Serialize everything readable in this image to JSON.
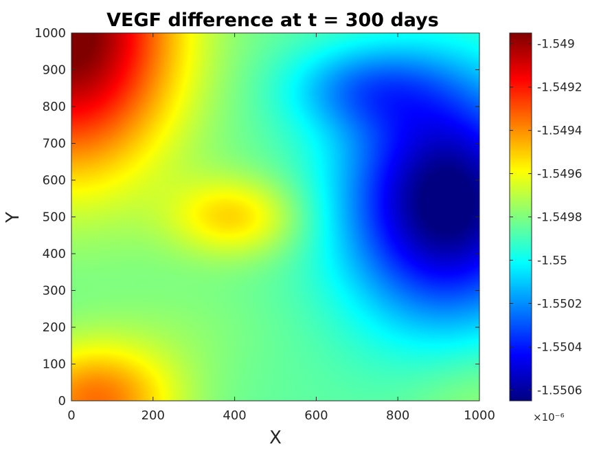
{
  "chart_data": {
    "type": "heatmap",
    "title": "VEGF difference at t = 300 days",
    "xlabel": "X",
    "ylabel": "Y",
    "xlim": [
      0,
      1000
    ],
    "ylim": [
      0,
      1000
    ],
    "x_ticks": [
      "0",
      "200",
      "400",
      "600",
      "800",
      "1000"
    ],
    "x_tick_values": [
      0,
      200,
      400,
      600,
      800,
      1000
    ],
    "y_ticks": [
      "0",
      "100",
      "200",
      "300",
      "400",
      "500",
      "600",
      "700",
      "800",
      "900",
      "1000"
    ],
    "y_tick_values": [
      0,
      100,
      200,
      300,
      400,
      500,
      600,
      700,
      800,
      900,
      1000
    ],
    "colormap": "jet",
    "colorbar": {
      "range": [
        -1.55065,
        -1.54895
      ],
      "scale_label": "×10⁻⁶",
      "tick_labels": [
        "-1.549",
        "-1.5492",
        "-1.5494",
        "-1.5496",
        "-1.5498",
        "-1.55",
        "-1.5502",
        "-1.5504",
        "-1.5506"
      ],
      "tick_values": [
        -1.549,
        -1.5492,
        -1.5494,
        -1.5496,
        -1.5498,
        -1.55,
        -1.5502,
        -1.5504,
        -1.5506
      ]
    },
    "field_approx": {
      "base": -1.54985,
      "features": [
        {
          "x": 0,
          "y": 1000,
          "amplitude": 0.00094,
          "sx": 260,
          "sy": 380
        },
        {
          "x": 400,
          "y": 500,
          "amplitude": 0.00032,
          "sx": 160,
          "sy": 110
        },
        {
          "x": 60,
          "y": 0,
          "amplitude": 0.0005,
          "sx": 200,
          "sy": 160
        },
        {
          "x": 920,
          "y": 540,
          "amplitude": -0.00085,
          "sx": 250,
          "sy": 320
        },
        {
          "x": 720,
          "y": 850,
          "amplitude": -0.0003,
          "sx": 200,
          "sy": 120
        },
        {
          "x": 1000,
          "y": 0,
          "amplitude": 0.0001,
          "sx": 180,
          "sy": 160
        },
        {
          "x": 300,
          "y": 200,
          "amplitude": 5e-05,
          "sx": 200,
          "sy": 150
        }
      ]
    }
  },
  "colors": {
    "title": "#000000",
    "text": "#262626",
    "axis_line": "#262626"
  }
}
